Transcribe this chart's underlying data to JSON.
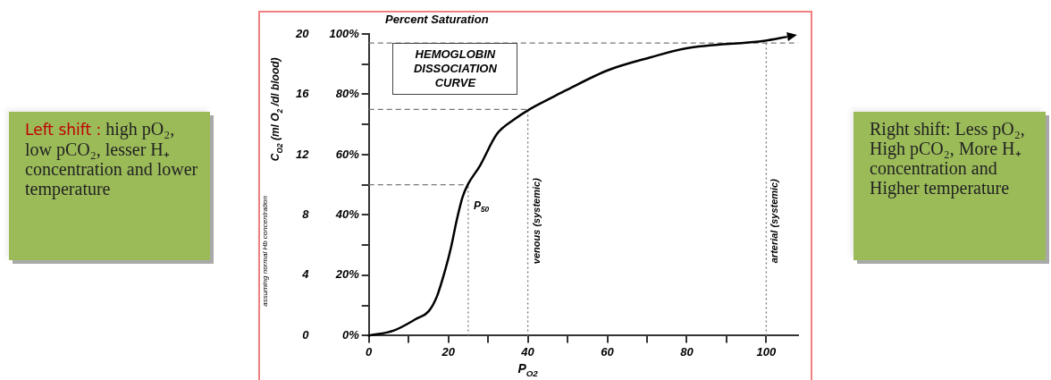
{
  "chart_data": {
    "type": "line",
    "title": "HEMOGLOBIN DISSOCIATION CURVE",
    "xlabel": "P$_{O2}$",
    "ylabel": "Percent Saturation",
    "y2label": "C$_{O2}$ (ml O$_{2}$ /dl blood)",
    "x": [
      0,
      6.3,
      12.1,
      15,
      17.1,
      19.2,
      20.7,
      22.1,
      23.6,
      25,
      27.9,
      32.2,
      36.5,
      40.4,
      46.6,
      49.4,
      60.2,
      71,
      79.6,
      99.8,
      105
    ],
    "series": [
      {
        "color": "#000000",
        "values": [
          0,
          1.7,
          5.7,
          8,
          12.9,
          21.7,
          29.4,
          38.2,
          46,
          50.3,
          56.2,
          66.8,
          71.6,
          75,
          79.3,
          81.2,
          88,
          92.3,
          95.2,
          97.8,
          99
        ]
      }
    ],
    "xlim": [
      0,
      108
    ],
    "xticks": [
      0,
      {
        "value": 10,
        "label": null
      },
      20,
      {
        "value": 30,
        "label": null
      },
      40,
      {
        "value": 50,
        "label": null
      },
      60,
      {
        "value": 70,
        "label": null
      },
      80,
      {
        "value": 90,
        "label": null
      },
      100
    ],
    "ylim": [
      0,
      100
    ],
    "yticks": [
      {
        "value": 0,
        "label": "0%"
      },
      {
        "value": 10,
        "label": null
      },
      {
        "value": 20,
        "label": "20%"
      },
      {
        "value": 30,
        "label": null
      },
      {
        "value": 40,
        "label": "40%"
      },
      {
        "value": 50,
        "label": null
      },
      {
        "value": 60,
        "label": "60%"
      },
      {
        "value": 70,
        "label": null
      },
      {
        "value": 80,
        "label": "80%"
      },
      {
        "value": 90,
        "label": null
      },
      {
        "value": 100,
        "label": "100%"
      }
    ],
    "y2lim": [
      0,
      20
    ],
    "y2ticks": [
      0,
      4,
      8,
      12,
      16,
      20
    ],
    "ref_lines": [
      {
        "axis": "x",
        "value": 25,
        "label": "P$_{50}$",
        "line_style": "dotted"
      },
      {
        "axis": "x",
        "value": 40,
        "label": "venous (systemic)",
        "line_style": "dotted"
      },
      {
        "axis": "x",
        "value": 100,
        "label": "arterial (systemic)",
        "line_style": "dotted"
      },
      {
        "axis": "y",
        "value": 50,
        "line_style": "dashed"
      },
      {
        "axis": "y",
        "value": 75,
        "line_style": "dashed"
      },
      {
        "axis": "y",
        "value": 97,
        "line_style": "dashed"
      }
    ],
    "legend": false,
    "marker": "none",
    "line_style": "solid",
    "annotations": [
      "Left shift : high pO₂, low pCO₂, lesser H₊ concentration and lower temperature",
      "assuming normal Hb concentration",
      "Right shift: Less pO₂, High pCO₂, More H₊ concentration and Higher temperature"
    ]
  }
}
